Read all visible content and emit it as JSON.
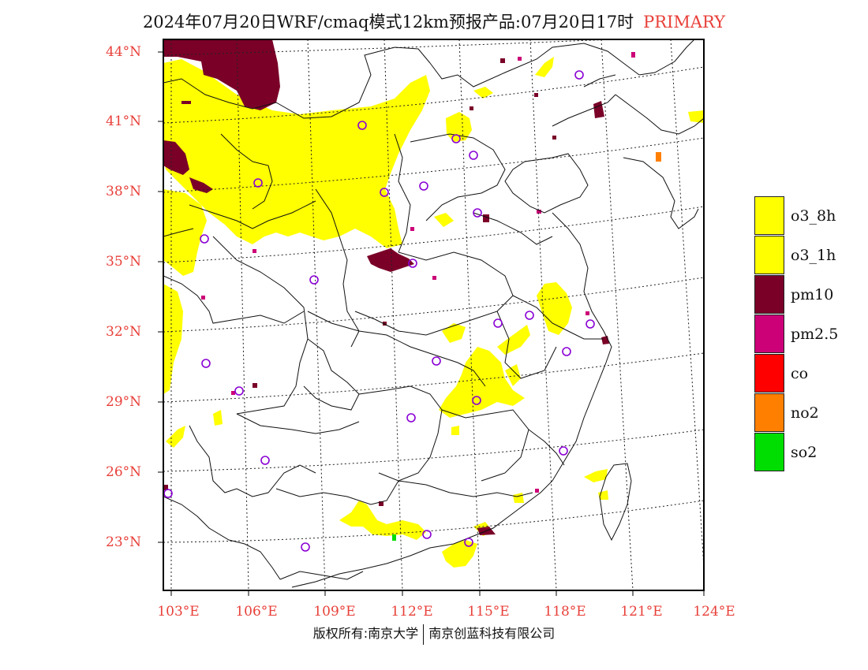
{
  "title": {
    "main": "2024年07月20日WRF/cmaq模式12km预报产品:07月20日17时",
    "tag": "PRIMARY"
  },
  "axes": {
    "latitude_labels": [
      "44°N",
      "41°N",
      "38°N",
      "35°N",
      "32°N",
      "29°N",
      "26°N",
      "23°N"
    ],
    "longitude_labels": [
      "103°E",
      "106°E",
      "109°E",
      "112°E",
      "115°E",
      "118°E",
      "121°E",
      "124°E"
    ]
  },
  "legend": [
    {
      "label": "o3_8h",
      "color": "#ffff00"
    },
    {
      "label": "o3_1h",
      "color": "#ffff00"
    },
    {
      "label": "pm10",
      "color": "#7a0028"
    },
    {
      "label": "pm2.5",
      "color": "#cc0077"
    },
    {
      "label": "co",
      "color": "#ff0000"
    },
    {
      "label": "no2",
      "color": "#ff7f00"
    },
    {
      "label": "so2",
      "color": "#00dd00"
    }
  ],
  "copyright": {
    "left": "版权所有:南京大学",
    "right": "南京创蓝科技有限公司"
  },
  "colors": {
    "label_red": "#e8403a",
    "station_circle": "#8a00d4",
    "o3": "#ffff00",
    "pm10": "#7a0028",
    "pm25": "#cc0077",
    "no2": "#ff7f00",
    "so2": "#00dd00"
  }
}
